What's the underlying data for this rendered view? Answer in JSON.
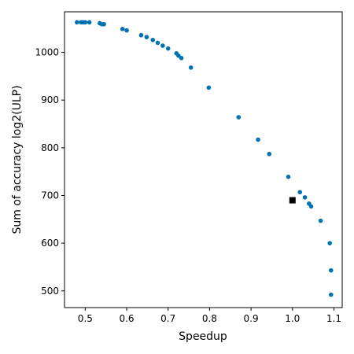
{
  "chart_data": {
    "type": "scatter",
    "title": "",
    "xlabel": "Speedup",
    "ylabel": "Sum of accuracy log2(ULP)",
    "xlim": [
      0.45,
      1.12
    ],
    "ylim": [
      465,
      1085
    ],
    "xticks": [
      "0.5",
      "0.6",
      "0.7",
      "0.8",
      "0.9",
      "1.0",
      "1.1"
    ],
    "yticks": [
      "500",
      "600",
      "700",
      "800",
      "900",
      "1000"
    ],
    "grid": false,
    "legend": "none",
    "series": [
      {
        "marker": "circle",
        "color": "#0072b2",
        "points": [
          {
            "x": 0.48,
            "y": 1063
          },
          {
            "x": 0.49,
            "y": 1063
          },
          {
            "x": 0.495,
            "y": 1063
          },
          {
            "x": 0.5,
            "y": 1063
          },
          {
            "x": 0.51,
            "y": 1063
          },
          {
            "x": 0.535,
            "y": 1061
          },
          {
            "x": 0.54,
            "y": 1059
          },
          {
            "x": 0.545,
            "y": 1059
          },
          {
            "x": 0.59,
            "y": 1049
          },
          {
            "x": 0.6,
            "y": 1046
          },
          {
            "x": 0.635,
            "y": 1036
          },
          {
            "x": 0.648,
            "y": 1032
          },
          {
            "x": 0.663,
            "y": 1026
          },
          {
            "x": 0.675,
            "y": 1020
          },
          {
            "x": 0.687,
            "y": 1014
          },
          {
            "x": 0.7,
            "y": 1008
          },
          {
            "x": 0.72,
            "y": 998
          },
          {
            "x": 0.725,
            "y": 993
          },
          {
            "x": 0.732,
            "y": 988
          },
          {
            "x": 0.755,
            "y": 968
          },
          {
            "x": 0.798,
            "y": 926
          },
          {
            "x": 0.87,
            "y": 864
          },
          {
            "x": 0.917,
            "y": 817
          },
          {
            "x": 0.944,
            "y": 787
          },
          {
            "x": 0.99,
            "y": 739
          },
          {
            "x": 1.018,
            "y": 707
          },
          {
            "x": 1.03,
            "y": 696
          },
          {
            "x": 1.04,
            "y": 683
          },
          {
            "x": 1.045,
            "y": 677
          },
          {
            "x": 1.068,
            "y": 647
          },
          {
            "x": 1.09,
            "y": 600
          },
          {
            "x": 1.093,
            "y": 543
          },
          {
            "x": 1.093,
            "y": 492
          }
        ]
      },
      {
        "marker": "square",
        "color": "#000000",
        "points": [
          {
            "x": 1.0,
            "y": 690
          }
        ]
      }
    ]
  }
}
